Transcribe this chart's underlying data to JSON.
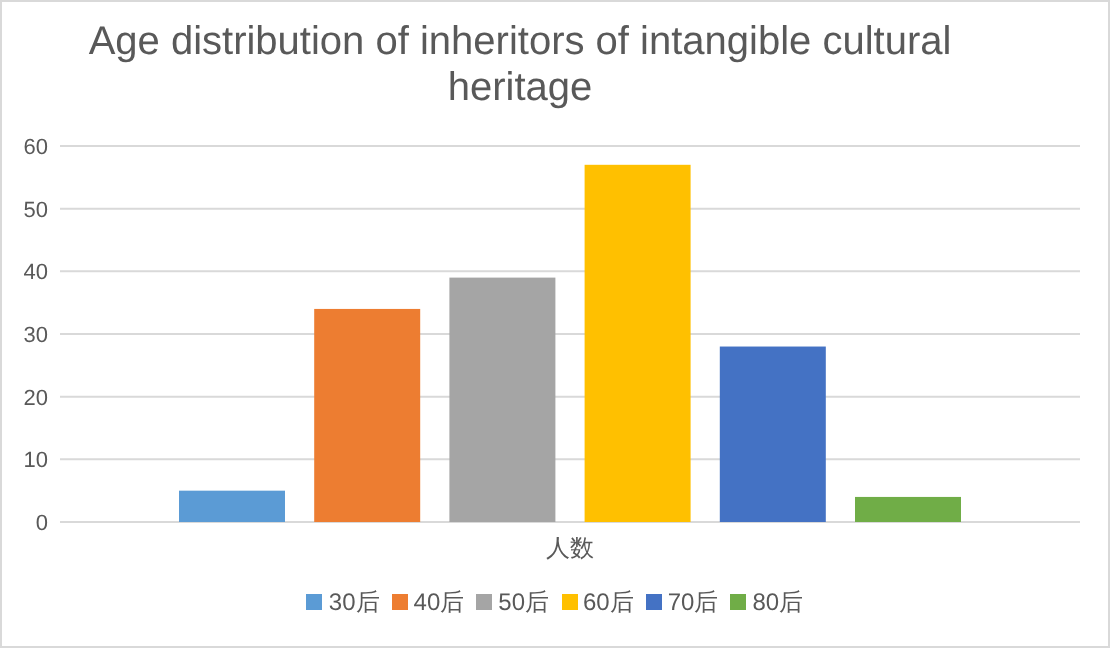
{
  "chart_data": {
    "type": "bar",
    "title": "Age distribution of inheritors of intangible cultural heritage",
    "categories": [
      "人数"
    ],
    "series": [
      {
        "name": "30后",
        "color": "#5b9bd5",
        "values": [
          5
        ]
      },
      {
        "name": "40后",
        "color": "#ed7d31",
        "values": [
          34
        ]
      },
      {
        "name": "50后",
        "color": "#a5a5a5",
        "values": [
          39
        ]
      },
      {
        "name": "60后",
        "color": "#ffc000",
        "values": [
          57
        ]
      },
      {
        "name": "70后",
        "color": "#4472c4",
        "values": [
          28
        ]
      },
      {
        "name": "80后",
        "color": "#70ad47",
        "values": [
          4
        ]
      }
    ],
    "ylim": [
      0,
      60
    ],
    "yticks": [
      0,
      10,
      20,
      30,
      40,
      50,
      60
    ],
    "grid": "y",
    "legend": "bottom"
  }
}
